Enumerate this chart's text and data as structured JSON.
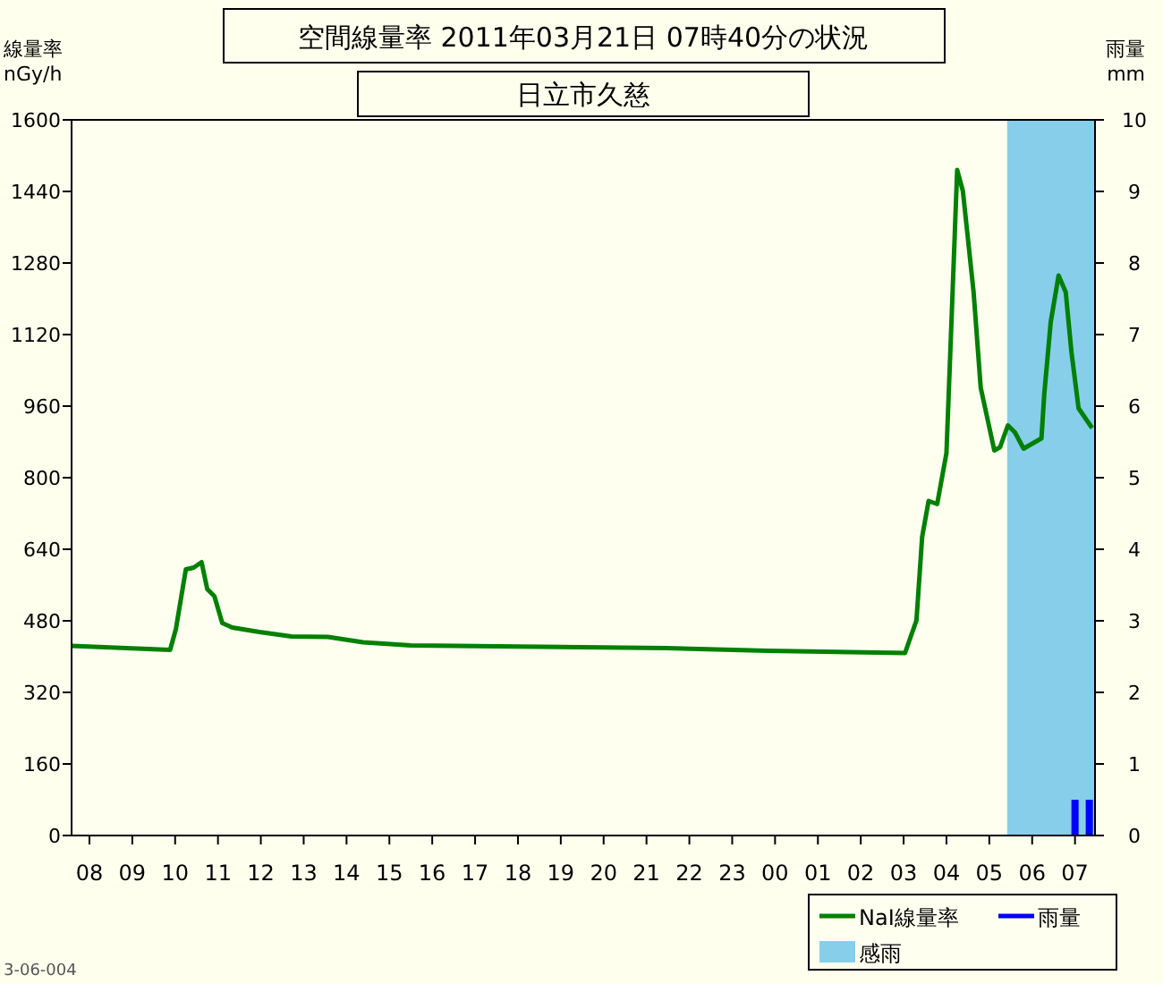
{
  "chart_data": {
    "type": "line",
    "title": "空間線量率 2011年03月21日 07時40分の状況",
    "subtitle": "日立市久慈",
    "ylabel": "線量率\nnGy/h",
    "y2label": "雨量\nmm",
    "xlim": [
      "2011-03-20T07:35",
      "2011-03-21T07:28"
    ],
    "ylim": [
      0,
      1600
    ],
    "y2lim": [
      0,
      10
    ],
    "xticks": [
      {
        "value": "2011-03-20T08:00",
        "label": "08"
      },
      {
        "value": "2011-03-20T09:00",
        "label": "09"
      },
      {
        "value": "2011-03-20T10:00",
        "label": "10"
      },
      {
        "value": "2011-03-20T11:00",
        "label": "11"
      },
      {
        "value": "2011-03-20T12:00",
        "label": "12"
      },
      {
        "value": "2011-03-20T13:00",
        "label": "13"
      },
      {
        "value": "2011-03-20T14:00",
        "label": "14"
      },
      {
        "value": "2011-03-20T15:00",
        "label": "15"
      },
      {
        "value": "2011-03-20T16:00",
        "label": "16"
      },
      {
        "value": "2011-03-20T17:00",
        "label": "17"
      },
      {
        "value": "2011-03-20T18:00",
        "label": "18"
      },
      {
        "value": "2011-03-20T19:00",
        "label": "19"
      },
      {
        "value": "2011-03-20T20:00",
        "label": "20"
      },
      {
        "value": "2011-03-20T21:00",
        "label": "21"
      },
      {
        "value": "2011-03-20T22:00",
        "label": "22"
      },
      {
        "value": "2011-03-20T23:00",
        "label": "23"
      },
      {
        "value": "2011-03-21T00:00",
        "label": "00"
      },
      {
        "value": "2011-03-21T01:00",
        "label": "01"
      },
      {
        "value": "2011-03-21T02:00",
        "label": "02"
      },
      {
        "value": "2011-03-21T03:00",
        "label": "03"
      },
      {
        "value": "2011-03-21T04:00",
        "label": "04"
      },
      {
        "value": "2011-03-21T05:00",
        "label": "05"
      },
      {
        "value": "2011-03-21T06:00",
        "label": "06"
      },
      {
        "value": "2011-03-21T07:00",
        "label": "07"
      }
    ],
    "yticks": [
      0,
      160,
      320,
      480,
      640,
      800,
      960,
      1120,
      1280,
      1440,
      1600
    ],
    "y2ticks": [
      0,
      1,
      2,
      3,
      4,
      5,
      6,
      7,
      8,
      9,
      10
    ],
    "series": [
      {
        "name": "NaI線量率",
        "color": "#008000",
        "x": [
          "2011-03-20T07:35",
          "2011-03-20T09:53",
          "2011-03-20T10:01",
          "2011-03-20T10:15",
          "2011-03-20T10:26",
          "2011-03-20T10:37",
          "2011-03-20T10:45",
          "2011-03-20T10:55",
          "2011-03-20T11:06",
          "2011-03-20T11:20",
          "2011-03-20T11:58",
          "2011-03-20T12:43",
          "2011-03-20T13:34",
          "2011-03-20T14:23",
          "2011-03-20T15:30",
          "2011-03-20T21:28",
          "2011-03-20T23:50",
          "2011-03-21T03:02",
          "2011-03-21T03:18",
          "2011-03-21T03:26",
          "2011-03-21T03:35",
          "2011-03-21T03:47",
          "2011-03-21T04:00",
          "2011-03-21T04:07",
          "2011-03-21T04:15",
          "2011-03-21T04:23",
          "2011-03-21T04:38",
          "2011-03-21T04:48",
          "2011-03-21T05:07",
          "2011-03-21T05:15",
          "2011-03-21T05:26",
          "2011-03-21T05:36",
          "2011-03-21T05:48",
          "2011-03-21T06:13",
          "2011-03-21T06:17",
          "2011-03-21T06:26",
          "2011-03-21T06:37",
          "2011-03-21T06:47",
          "2011-03-21T06:55",
          "2011-03-21T07:05",
          "2011-03-21T07:24"
        ],
        "values": [
          424,
          415,
          461,
          595,
          599,
          611,
          551,
          535,
          475,
          465,
          455,
          445,
          444,
          432,
          425,
          419,
          413,
          408,
          481,
          668,
          748,
          741,
          855,
          1148,
          1488,
          1441,
          1215,
          1001,
          861,
          868,
          917,
          901,
          865,
          888,
          988,
          1148,
          1252,
          1215,
          1081,
          955,
          911
        ]
      },
      {
        "name": "雨量",
        "type": "bar",
        "axis": "y2",
        "color": "#0000ff",
        "x": [
          "2011-03-21T07:00",
          "2011-03-21T07:20"
        ],
        "values": [
          0.5,
          0.5
        ]
      }
    ],
    "bands": [
      {
        "axis": "x",
        "from": "2011-03-21T05:25",
        "to": "2011-03-21T07:28",
        "label": "感雨",
        "color": "#87ceeb"
      }
    ],
    "legend": "bottom right",
    "marker": "none",
    "line_style": "solid",
    "annotations": [
      "3-06-004"
    ]
  }
}
